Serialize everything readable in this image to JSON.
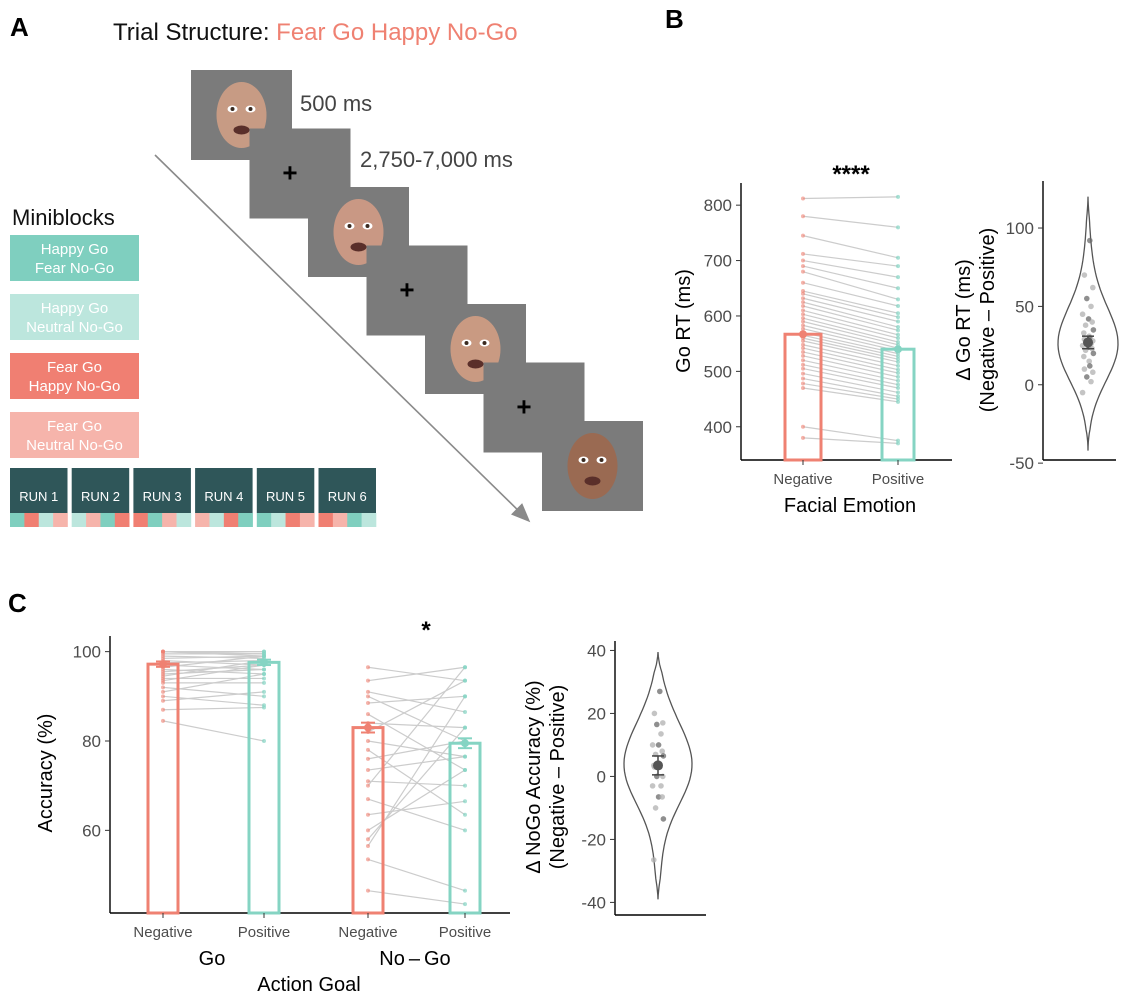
{
  "colors": {
    "negative": "#ef8172",
    "positive": "#85d4c3",
    "happy_go_fear_nogo": "#7fcfbf",
    "happy_go_neutral_nogo": "#bce6dd",
    "fear_go_happy_nogo": "#f07f72",
    "fear_go_neutral_nogo": "#f6b4ab",
    "run_box": "#2f5659",
    "screen_gray": "#7b7b7b",
    "paired_line": "#cccccc",
    "dot_gray": "#9a9a9a"
  },
  "panelA": {
    "label": "A",
    "title_prefix": "Trial Structure: ",
    "title_condition": "Fear Go Happy No-Go",
    "timing_face": "500 ms",
    "timing_fixation": "2,750-7,000 ms",
    "fixation_symbol": "+",
    "screens": [
      {
        "type": "face-icon",
        "tone": "#c79b84"
      },
      {
        "type": "fixation"
      },
      {
        "type": "face-icon",
        "tone": "#c99884"
      },
      {
        "type": "fixation"
      },
      {
        "type": "face-icon",
        "tone": "#c99a82"
      },
      {
        "type": "fixation"
      },
      {
        "type": "face-icon",
        "tone": "#9a6a52"
      }
    ],
    "miniblocks_title": "Miniblocks",
    "miniblocks": [
      {
        "line1": "Happy Go",
        "line2": "Fear No-Go",
        "color": "#7fcfbf"
      },
      {
        "line1": "Happy Go",
        "line2": "Neutral No-Go",
        "color": "#bce6dd"
      },
      {
        "line1": "Fear Go",
        "line2": "Happy No-Go",
        "color": "#f07f72"
      },
      {
        "line1": "Fear Go",
        "line2": "Neutral No-Go",
        "color": "#f6b4ab"
      }
    ],
    "runs": [
      {
        "label": "RUN 1",
        "strip": [
          0,
          2,
          1,
          3
        ]
      },
      {
        "label": "RUN 2",
        "strip": [
          1,
          3,
          0,
          2
        ]
      },
      {
        "label": "RUN 3",
        "strip": [
          2,
          0,
          3,
          1
        ]
      },
      {
        "label": "RUN 4",
        "strip": [
          3,
          1,
          2,
          0
        ]
      },
      {
        "label": "RUN 5",
        "strip": [
          0,
          1,
          2,
          3
        ]
      },
      {
        "label": "RUN 6",
        "strip": [
          2,
          3,
          0,
          1
        ]
      }
    ]
  },
  "chart_data": [
    {
      "panel": "B",
      "type": "bar",
      "title": "",
      "xlabel": "Facial Emotion",
      "ylabel": "Go RT (ms)",
      "categories": [
        "Negative",
        "Positive"
      ],
      "values": [
        567,
        540
      ],
      "ylim": [
        340,
        840
      ],
      "yticks": [
        400,
        500,
        600,
        700,
        800
      ],
      "grid": false,
      "significance": "****",
      "subjects": {
        "negative": [
          812,
          780,
          745,
          712,
          700,
          690,
          680,
          660,
          645,
          640,
          632,
          625,
          618,
          610,
          603,
          596,
          590,
          583,
          577,
          570,
          565,
          560,
          555,
          548,
          542,
          535,
          528,
          520,
          512,
          505,
          496,
          487,
          478,
          470,
          400,
          380
        ],
        "positive": [
          815,
          760,
          705,
          690,
          670,
          650,
          630,
          618,
          605,
          598,
          590,
          580,
          574,
          566,
          560,
          553,
          548,
          542,
          537,
          532,
          527,
          522,
          517,
          510,
          503,
          497,
          490,
          483,
          476,
          470,
          462,
          455,
          450,
          445,
          375,
          370
        ]
      }
    },
    {
      "panel": "B",
      "type": "violin",
      "title": "",
      "xlabel": "",
      "ylabel": "Δ Go RT (ms)\n(Negative – Positive)",
      "ylim": [
        -48,
        130
      ],
      "yticks": [
        -50,
        0,
        50,
        100
      ],
      "mean": 27,
      "sem_range": [
        23,
        31
      ],
      "violin_min": -42,
      "violin_max": 120,
      "points": [
        92,
        70,
        62,
        55,
        50,
        45,
        42,
        40,
        38,
        35,
        33,
        31,
        30,
        29,
        28,
        27,
        26,
        25,
        24,
        23,
        22,
        20,
        18,
        15,
        12,
        10,
        8,
        5,
        2,
        -5
      ]
    },
    {
      "panel": "C",
      "type": "bar",
      "title": "",
      "xlabel": "Action Goal",
      "ylabel": "Accuracy (%)",
      "groups": [
        "Go",
        "No – Go"
      ],
      "categories": [
        "Negative",
        "Positive",
        "Negative",
        "Positive"
      ],
      "series": [
        {
          "group": "Go",
          "emotion": "Negative",
          "value": 97.2,
          "sem": 0.6
        },
        {
          "group": "Go",
          "emotion": "Positive",
          "value": 97.6,
          "sem": 0.6
        },
        {
          "group": "No – Go",
          "emotion": "Negative",
          "value": 83.0,
          "sem": 1.1
        },
        {
          "group": "No – Go",
          "emotion": "Positive",
          "value": 79.5,
          "sem": 1.1
        }
      ],
      "ylim": [
        41.5,
        103.5
      ],
      "yticks": [
        60,
        80,
        100
      ],
      "grid": false,
      "significance": "*",
      "subjects": {
        "go_negative": [
          100,
          100,
          100,
          100,
          99.5,
          99,
          98.5,
          98,
          97.5,
          97,
          96.5,
          96,
          95.5,
          95,
          94.5,
          94,
          93.5,
          93,
          92,
          91,
          90,
          89,
          87,
          84.5
        ],
        "go_positive": [
          100,
          100,
          99.5,
          99,
          99.5,
          98.5,
          99,
          97,
          98,
          96,
          99,
          95,
          97,
          96,
          98,
          94,
          97,
          93,
          90,
          95,
          88,
          91,
          87.5,
          80
        ],
        "nogo_negative": [
          96.5,
          93.5,
          91,
          90,
          88.5,
          86,
          84,
          82,
          80,
          78,
          76,
          73.5,
          71,
          70,
          67,
          63.5,
          60,
          58,
          56.5,
          53.5,
          46.5
        ],
        "nogo_positive": [
          93.5,
          96.5,
          86.5,
          80,
          90,
          73.5,
          83,
          93.5,
          76.5,
          63.5,
          80,
          76.5,
          70,
          96.5,
          60,
          66.5,
          73.5,
          83,
          90,
          46.5,
          43.5
        ]
      }
    },
    {
      "panel": "C",
      "type": "violin",
      "title": "",
      "xlabel": "",
      "ylabel": "Δ NoGo Accuracy (%)\n(Negative – Positive)",
      "ylim": [
        -44,
        43
      ],
      "yticks": [
        -40,
        -20,
        0,
        20,
        40
      ],
      "mean": 3.5,
      "sem_range": [
        0.5,
        6.5
      ],
      "violin_min": -39,
      "violin_max": 39.5,
      "points": [
        27,
        20,
        17,
        16.5,
        13.5,
        10,
        10,
        8,
        7,
        6.5,
        3.5,
        3.5,
        3,
        3,
        0,
        0,
        -3,
        -3,
        -6.5,
        -6.5,
        -10,
        -13.5,
        -26.5
      ]
    }
  ]
}
